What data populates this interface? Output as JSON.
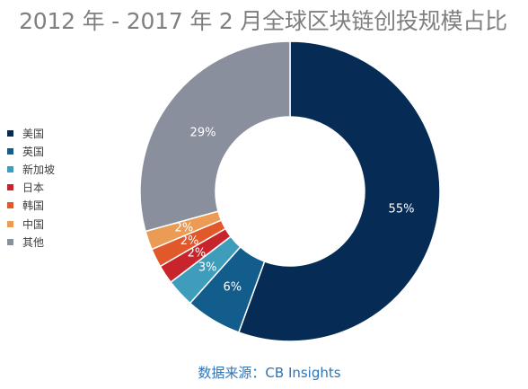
{
  "title": "2012 年 - 2017 年 2 月全球区块链创投规模占比",
  "source": "数据来源：CB Insights",
  "chart_data": {
    "type": "pie",
    "donut": true,
    "legend_position": "left",
    "categories": [
      "美国",
      "英国",
      "新加坡",
      "日本",
      "韩国",
      "中国",
      "其他"
    ],
    "values": [
      55,
      6,
      3,
      2,
      2,
      2,
      29
    ],
    "labels": [
      "55%",
      "6%",
      "3%",
      "2%",
      "2%",
      "2%",
      "29%"
    ],
    "colors": [
      "#062c55",
      "#125d8c",
      "#3f9dbc",
      "#c8242c",
      "#e1592a",
      "#ec9b54",
      "#8a8f9e"
    ]
  }
}
